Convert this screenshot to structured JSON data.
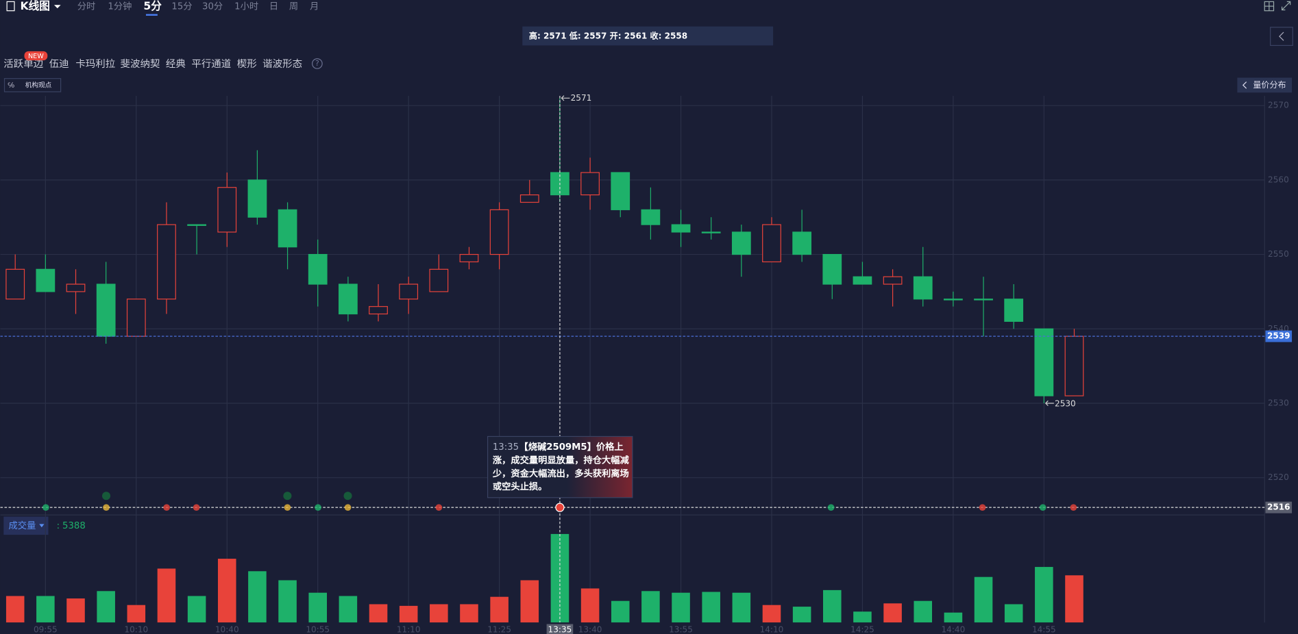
{
  "toolbar": {
    "title": "K线图",
    "periods": [
      "分时",
      "1分钟",
      "5分",
      "15分",
      "30分",
      "1小时",
      "日",
      "周",
      "月"
    ],
    "active_period": 2
  },
  "info_box": "高: 2571 低: 2557 开: 2561 收: 2558",
  "tools": {
    "items": [
      "活跃单边",
      "伍迪",
      "卡玛利拉",
      "斐波纳契",
      "经典",
      "平行通道",
      "楔形",
      "谐波形态"
    ],
    "badge": "NEW",
    "help": "?"
  },
  "institution_button": "机构观点",
  "volume_profile_button": "量价分布",
  "volume_panel": {
    "label": "成交量",
    "separator": ":"
  },
  "tooltip": {
    "lines": [
      "【烧碱2509M5】价格上",
      "涨，成交量明显放量，持仓大幅减",
      "少，资金大幅流出，多头获利离场",
      "或空头止损。"
    ]
  },
  "chart_data": {
    "type": "candlestick",
    "categories": [
      null,
      "09:55",
      null,
      null,
      "10:10",
      null,
      null,
      "10:40",
      null,
      null,
      "10:55",
      null,
      null,
      "11:10",
      null,
      null,
      "11:25",
      null,
      "13:35",
      "13:40",
      null,
      null,
      "13:55",
      null,
      null,
      "14:10",
      null,
      null,
      "14:25",
      null,
      null,
      "14:40",
      null,
      null,
      "14:55",
      null
    ],
    "open": [
      2544,
      2548,
      2545,
      2546,
      2539,
      2544,
      2554,
      2553,
      2560,
      2556,
      2550,
      2546,
      2542,
      2544,
      2545,
      2549,
      2550,
      2557,
      2561,
      2558,
      2561,
      2556,
      2554,
      2553,
      2553,
      2549,
      2553,
      2550,
      2547,
      2546,
      2547,
      2544,
      2544,
      2544,
      2540,
      2531
    ],
    "high": [
      2550,
      2550,
      2548,
      2549,
      2544,
      2557,
      2554,
      2561,
      2564,
      2557,
      2552,
      2547,
      2546,
      2547,
      2550,
      2551,
      2557,
      2560,
      2571,
      2563,
      2561,
      2559,
      2556,
      2555,
      2554,
      2555,
      2556,
      2550,
      2549,
      2548,
      2551,
      2545,
      2547,
      2546,
      2540,
      2540
    ],
    "low": [
      2544,
      2545,
      2542,
      2538,
      2539,
      2542,
      2550,
      2551,
      2554,
      2548,
      2543,
      2541,
      2541,
      2542,
      2545,
      2548,
      2548,
      2557,
      2557,
      2556,
      2555,
      2552,
      2551,
      2552,
      2547,
      2549,
      2549,
      2544,
      2546,
      2543,
      2543,
      2543,
      2539,
      2540,
      2530,
      2531
    ],
    "close": [
      2548,
      2545,
      2546,
      2539,
      2544,
      2554,
      2554,
      2559,
      2555,
      2551,
      2546,
      2542,
      2543,
      2546,
      2548,
      2550,
      2556,
      2558,
      2558,
      2561,
      2556,
      2554,
      2553,
      2553,
      2550,
      2554,
      2550,
      2546,
      2546,
      2547,
      2544,
      2544,
      2544,
      2541,
      2531,
      2539
    ],
    "volume": [
      1610,
      1610,
      1460,
      1910,
      1060,
      3280,
      1610,
      3880,
      3120,
      2570,
      1810,
      1610,
      1110,
      1010,
      1110,
      1110,
      1560,
      2570,
      5388,
      2070,
      1310,
      1910,
      1810,
      1860,
      1810,
      1060,
      960,
      1970,
      660,
      1160,
      1310,
      600,
      2770,
      1110,
      3380,
      2870
    ],
    "up_color": "#e8433a",
    "down_color": "#1eb16a",
    "ylim": [
      2515.1,
      2571.3
    ],
    "yticks": [
      2520,
      2530,
      2540,
      2550,
      2560,
      2570
    ],
    "grid": true,
    "selected_index": 18,
    "high_mark_index": 18,
    "low_mark_index": 34,
    "crosshair_price": 2516
  }
}
